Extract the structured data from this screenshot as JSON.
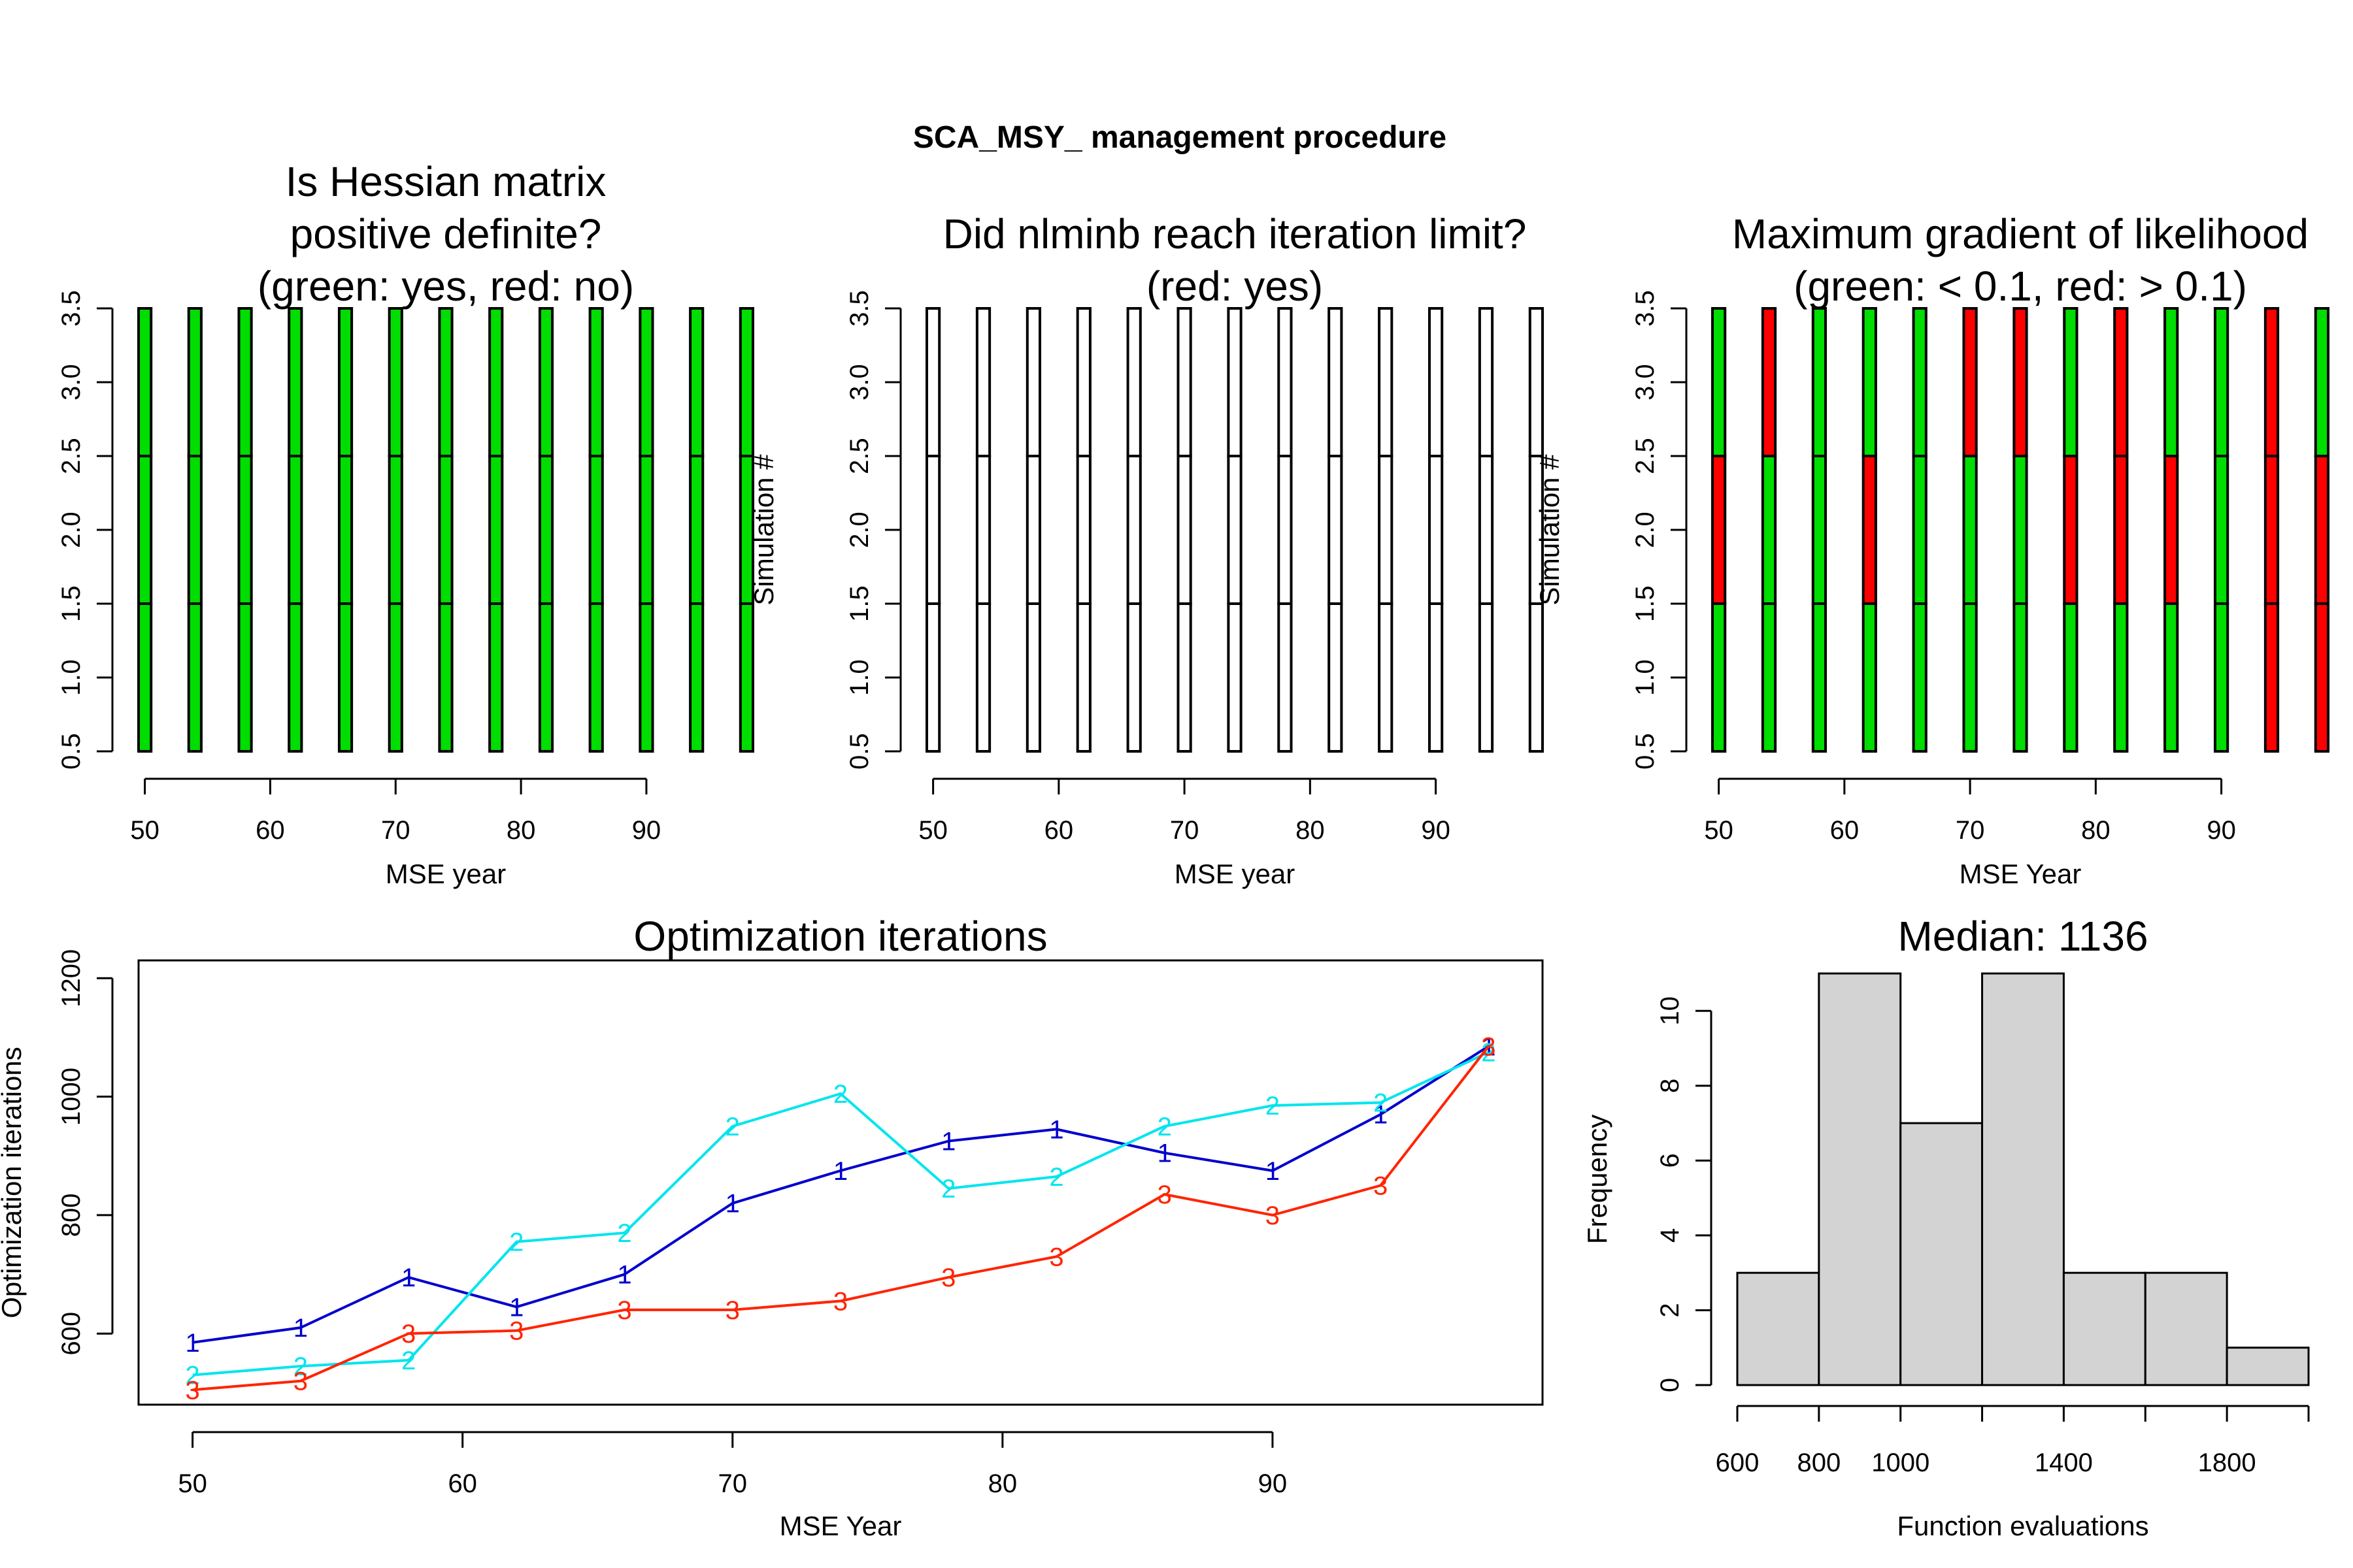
{
  "main_title": "SCA_MSY_ management procedure",
  "colors": {
    "green": "#00DD00",
    "red": "#FF0000",
    "white": "#FFFFFF",
    "sim1": "#0000CD",
    "sim2": "#00E5EE",
    "sim3": "#FF2400",
    "hist": "#D3D3D3"
  },
  "chart_data": [
    {
      "id": "hessian",
      "type": "heatmap",
      "title": [
        "Is Hessian matrix",
        "positive definite?",
        "(green: yes, red: no)"
      ],
      "xlabel": "MSE year",
      "ylabel": "Simulation #",
      "x": [
        50,
        54,
        58,
        62,
        66,
        70,
        74,
        78,
        82,
        86,
        90,
        94,
        98
      ],
      "y": [
        1,
        2,
        3
      ],
      "xlim": [
        49.5,
        98.5
      ],
      "ylim": [
        0.5,
        3.5
      ],
      "xticks": [
        50,
        60,
        70,
        80,
        90
      ],
      "yticks": [
        "0.5",
        "1.0",
        "1.5",
        "2.0",
        "2.5",
        "3.0",
        "3.5"
      ],
      "values": [
        [
          "green",
          "green",
          "green",
          "green",
          "green",
          "green",
          "green",
          "green",
          "green",
          "green",
          "green",
          "green",
          "green"
        ],
        [
          "green",
          "green",
          "green",
          "green",
          "green",
          "green",
          "green",
          "green",
          "green",
          "green",
          "green",
          "green",
          "green"
        ],
        [
          "green",
          "green",
          "green",
          "green",
          "green",
          "green",
          "green",
          "green",
          "green",
          "green",
          "green",
          "green",
          "green"
        ]
      ]
    },
    {
      "id": "iterlimit",
      "type": "heatmap",
      "title": [
        "Did nlminb reach iteration limit?",
        "(red: yes)"
      ],
      "xlabel": "MSE year",
      "ylabel": "Simulation #",
      "x": [
        50,
        54,
        58,
        62,
        66,
        70,
        74,
        78,
        82,
        86,
        90,
        94,
        98
      ],
      "y": [
        1,
        2,
        3
      ],
      "xlim": [
        49.5,
        98.5
      ],
      "ylim": [
        0.5,
        3.5
      ],
      "xticks": [
        50,
        60,
        70,
        80,
        90
      ],
      "yticks": [
        "0.5",
        "1.0",
        "1.5",
        "2.0",
        "2.5",
        "3.0",
        "3.5"
      ],
      "values": [
        [
          "white",
          "white",
          "white",
          "white",
          "white",
          "white",
          "white",
          "white",
          "white",
          "white",
          "white",
          "white",
          "white"
        ],
        [
          "white",
          "white",
          "white",
          "white",
          "white",
          "white",
          "white",
          "white",
          "white",
          "white",
          "white",
          "white",
          "white"
        ],
        [
          "white",
          "white",
          "white",
          "white",
          "white",
          "white",
          "white",
          "white",
          "white",
          "white",
          "white",
          "white",
          "white"
        ]
      ]
    },
    {
      "id": "gradient",
      "type": "heatmap",
      "title": [
        "Maximum gradient of likelihood",
        "(green: < 0.1, red: > 0.1)"
      ],
      "xlabel": "MSE Year",
      "ylabel": "Simulation #",
      "x": [
        50,
        54,
        58,
        62,
        66,
        70,
        74,
        78,
        82,
        86,
        90,
        94,
        98
      ],
      "y": [
        1,
        2,
        3
      ],
      "xlim": [
        49.5,
        98.5
      ],
      "ylim": [
        0.5,
        3.5
      ],
      "xticks": [
        50,
        60,
        70,
        80,
        90
      ],
      "yticks": [
        "0.5",
        "1.0",
        "1.5",
        "2.0",
        "2.5",
        "3.0",
        "3.5"
      ],
      "values": [
        [
          "green",
          "green",
          "green",
          "green",
          "green",
          "green",
          "green",
          "green",
          "green",
          "green",
          "green",
          "red",
          "red"
        ],
        [
          "red",
          "green",
          "green",
          "red",
          "green",
          "green",
          "green",
          "red",
          "red",
          "red",
          "green",
          "red",
          "red"
        ],
        [
          "green",
          "red",
          "green",
          "green",
          "green",
          "red",
          "red",
          "green",
          "red",
          "green",
          "green",
          "red",
          "green"
        ]
      ]
    },
    {
      "id": "iterations",
      "type": "line",
      "title": "Optimization iterations",
      "xlabel": "MSE Year",
      "ylabel": "Optimization iterations",
      "xlim": [
        48,
        100
      ],
      "ylim": [
        480,
        1230
      ],
      "xticks": [
        50,
        60,
        70,
        80,
        90
      ],
      "yticks": [
        600,
        800,
        1000,
        1200
      ],
      "x": [
        50,
        54,
        58,
        62,
        66,
        70,
        74,
        78,
        82,
        86,
        90,
        94,
        98
      ],
      "series": [
        {
          "label": "1",
          "color": "#0000CD",
          "values": [
            585,
            610,
            695,
            645,
            700,
            820,
            875,
            925,
            945,
            905,
            875,
            970,
            1085
          ]
        },
        {
          "label": "2",
          "color": "#00E5EE",
          "values": [
            530,
            545,
            555,
            755,
            770,
            950,
            1005,
            845,
            865,
            950,
            985,
            990,
            1075
          ]
        },
        {
          "label": "3",
          "color": "#FF2400",
          "values": [
            505,
            520,
            600,
            605,
            640,
            640,
            655,
            695,
            730,
            835,
            800,
            850,
            1085
          ]
        }
      ]
    },
    {
      "id": "hist",
      "type": "bar",
      "title": "Median: 1136",
      "xlabel": "Function evaluations",
      "ylabel": "Frequency",
      "bins": [
        [
          600,
          800
        ],
        [
          800,
          1000
        ],
        [
          1000,
          1200
        ],
        [
          1200,
          1400
        ],
        [
          1400,
          1600
        ],
        [
          1600,
          1800
        ],
        [
          1800,
          2000
        ]
      ],
      "values": [
        3,
        11,
        7,
        11,
        3,
        3,
        1
      ],
      "xlim": [
        600,
        2000
      ],
      "ylim": [
        0,
        11
      ],
      "xticks": [
        600,
        800,
        1000,
        1400,
        1800
      ],
      "yticks": [
        0,
        2,
        4,
        6,
        8,
        10
      ]
    }
  ]
}
